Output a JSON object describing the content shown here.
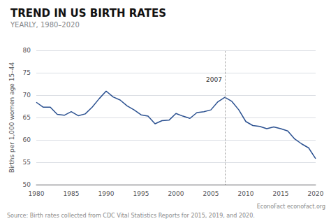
{
  "chart_data": {
    "type": "line",
    "title": "TREND IN US BIRTH RATES",
    "subtitle": "YEARLY, 1980–2020",
    "ylabel": "Births per 1,000 women age 15–44",
    "source": "Source: Birth rates collected from CDC Vital Statistics Reports for 2015, 2019, and 2020.",
    "source_right": "EconoFact econofact.org",
    "annotation": {
      "text": "2007",
      "x": 2007,
      "y": 73.5
    },
    "x": [
      1980,
      1981,
      1982,
      1983,
      1984,
      1985,
      1986,
      1987,
      1988,
      1989,
      1990,
      1991,
      1992,
      1993,
      1994,
      1995,
      1996,
      1997,
      1998,
      1999,
      2000,
      2001,
      2002,
      2003,
      2004,
      2005,
      2006,
      2007,
      2008,
      2009,
      2010,
      2011,
      2012,
      2013,
      2014,
      2015,
      2016,
      2017,
      2018,
      2019,
      2020
    ],
    "values": [
      68.4,
      67.3,
      67.3,
      65.7,
      65.5,
      66.3,
      65.4,
      65.8,
      67.3,
      69.2,
      70.9,
      69.6,
      68.9,
      67.6,
      66.7,
      65.6,
      65.3,
      63.6,
      64.3,
      64.4,
      65.9,
      65.3,
      64.8,
      66.1,
      66.3,
      66.7,
      68.5,
      69.5,
      68.6,
      66.7,
      64.1,
      63.2,
      63.0,
      62.5,
      62.9,
      62.5,
      62.0,
      60.2,
      59.1,
      58.2,
      55.8
    ],
    "color": "#2a5090",
    "xlim": [
      1980,
      2020
    ],
    "xticks": [
      1980,
      1985,
      1990,
      1995,
      2000,
      2005,
      2010,
      2015,
      2020
    ],
    "ylim": [
      50,
      80
    ],
    "yticks": [
      50,
      55,
      60,
      65,
      70,
      75,
      80
    ],
    "grid": true
  }
}
